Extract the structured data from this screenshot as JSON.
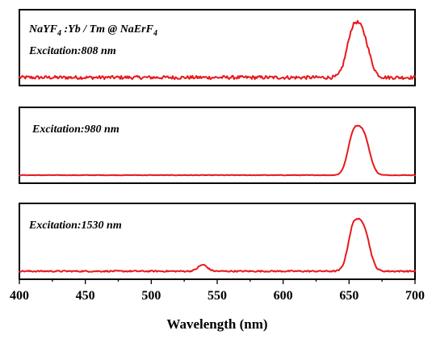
{
  "chart_data": {
    "type": "line",
    "xlabel": "Wavelength (nm)",
    "xlim": [
      400,
      700
    ],
    "xticks": [
      400,
      450,
      500,
      550,
      600,
      650,
      700
    ],
    "line_color": "#e8191c",
    "sample_label": {
      "base": "NaYF",
      "sub1": "4",
      "mid": " :Yb / Tm @ NaErF",
      "sub2": "4"
    },
    "panels": [
      {
        "annotation": "Excitation:808 nm",
        "ylim": [
          0,
          1
        ],
        "peaks": [
          {
            "center": 652,
            "width": 4.5,
            "height": 0.62
          },
          {
            "center": 660,
            "width": 5.2,
            "height": 0.72
          }
        ],
        "noise": 0.03
      },
      {
        "annotation": "Excitation:980 nm",
        "ylim": [
          0,
          1
        ],
        "peaks": [
          {
            "center": 653,
            "width": 4.2,
            "height": 0.63
          },
          {
            "center": 661,
            "width": 4.6,
            "height": 0.66
          }
        ],
        "noise": 0.004
      },
      {
        "annotation": "Excitation:1530 nm",
        "ylim": [
          0,
          1
        ],
        "peaks": [
          {
            "center": 539,
            "width": 3.5,
            "height": 0.11
          },
          {
            "center": 653,
            "width": 4.0,
            "height": 0.68
          },
          {
            "center": 661,
            "width": 4.5,
            "height": 0.72
          }
        ],
        "noise": 0.012
      }
    ]
  }
}
